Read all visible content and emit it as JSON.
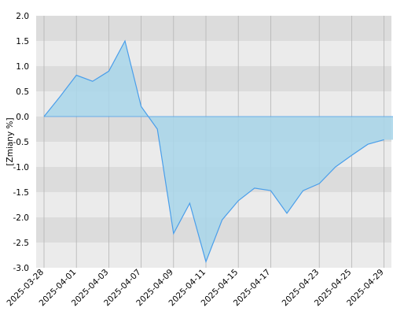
{
  "chart_data": {
    "type": "area",
    "title": "",
    "xlabel": "",
    "ylabel": "[Zmiany %]",
    "ylim": [
      -3.0,
      2.0
    ],
    "yticks": [
      "2.0",
      "1.5",
      "1.0",
      "0.5",
      "0.0",
      "-0.5",
      "-1.0",
      "-1.5",
      "-2.0",
      "-2.5",
      "-3.0"
    ],
    "ytick_values": [
      2.0,
      1.5,
      1.0,
      0.5,
      0.0,
      -0.5,
      -1.0,
      -1.5,
      -2.0,
      -2.5,
      -3.0
    ],
    "xtick_labels": [
      "2025-03-28",
      "2025-04-01",
      "2025-04-03",
      "2025-04-07",
      "2025-04-09",
      "2025-04-11",
      "2025-04-15",
      "2025-04-17",
      "2025-04-23",
      "2025-04-25",
      "2025-04-29"
    ],
    "x": [
      "2025-03-28",
      "2025-03-31",
      "2025-04-01",
      "2025-04-02",
      "2025-04-03",
      "2025-04-04",
      "2025-04-07",
      "2025-04-08",
      "2025-04-09",
      "2025-04-10",
      "2025-04-11",
      "2025-04-14",
      "2025-04-15",
      "2025-04-16",
      "2025-04-17",
      "2025-04-18",
      "2025-04-22",
      "2025-04-23",
      "2025-04-24",
      "2025-04-25",
      "2025-04-28",
      "2025-04-29",
      "2025-04-30"
    ],
    "series": [
      {
        "values": [
          0.0,
          0.4,
          0.82,
          0.7,
          0.9,
          1.5,
          0.2,
          -0.25,
          -2.32,
          -1.72,
          -2.88,
          -2.05,
          -1.67,
          -1.42,
          -1.47,
          -1.92,
          -1.47,
          -1.33,
          -1.0,
          -0.77,
          -0.55,
          -0.46,
          null
        ]
      }
    ],
    "colors": {
      "line": "#4a9eea",
      "fill": "#a8d6ea",
      "band_dark": "#dcdcdc",
      "band_light": "#ebebeb",
      "grid_vertical": "#b4b4b4"
    },
    "grid": true,
    "legend": "none"
  }
}
